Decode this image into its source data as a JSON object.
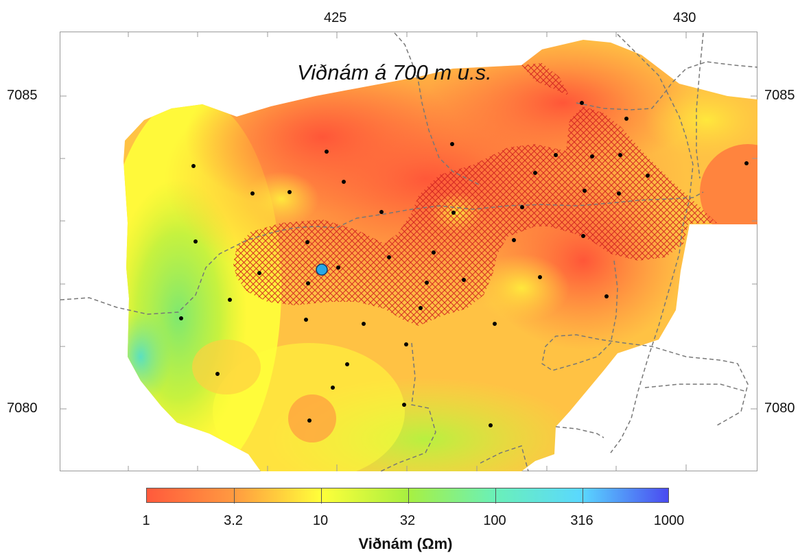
{
  "map": {
    "title": "Viðnám á 700 m u.s.",
    "x_ticks": [
      "425",
      "430"
    ],
    "y_ticks_left": [
      "7085",
      "7080"
    ],
    "y_ticks_right": [
      "7085",
      "7080"
    ]
  },
  "colorbar": {
    "ticks": [
      "1",
      "3.2",
      "10",
      "32",
      "100",
      "316",
      "1000"
    ],
    "title": "Viðnám (Ωm)",
    "scale": "log",
    "colors": [
      "#ff5a3c",
      "#ff9a40",
      "#ffff3a",
      "#a8f040",
      "#6af0b8",
      "#5ad8ff",
      "#4a4af0"
    ]
  },
  "legend": {
    "hatch_color": "#d02020",
    "station_color": "#000000",
    "highlight_well_color": "#29a8e6",
    "road_color": "#777777"
  }
}
